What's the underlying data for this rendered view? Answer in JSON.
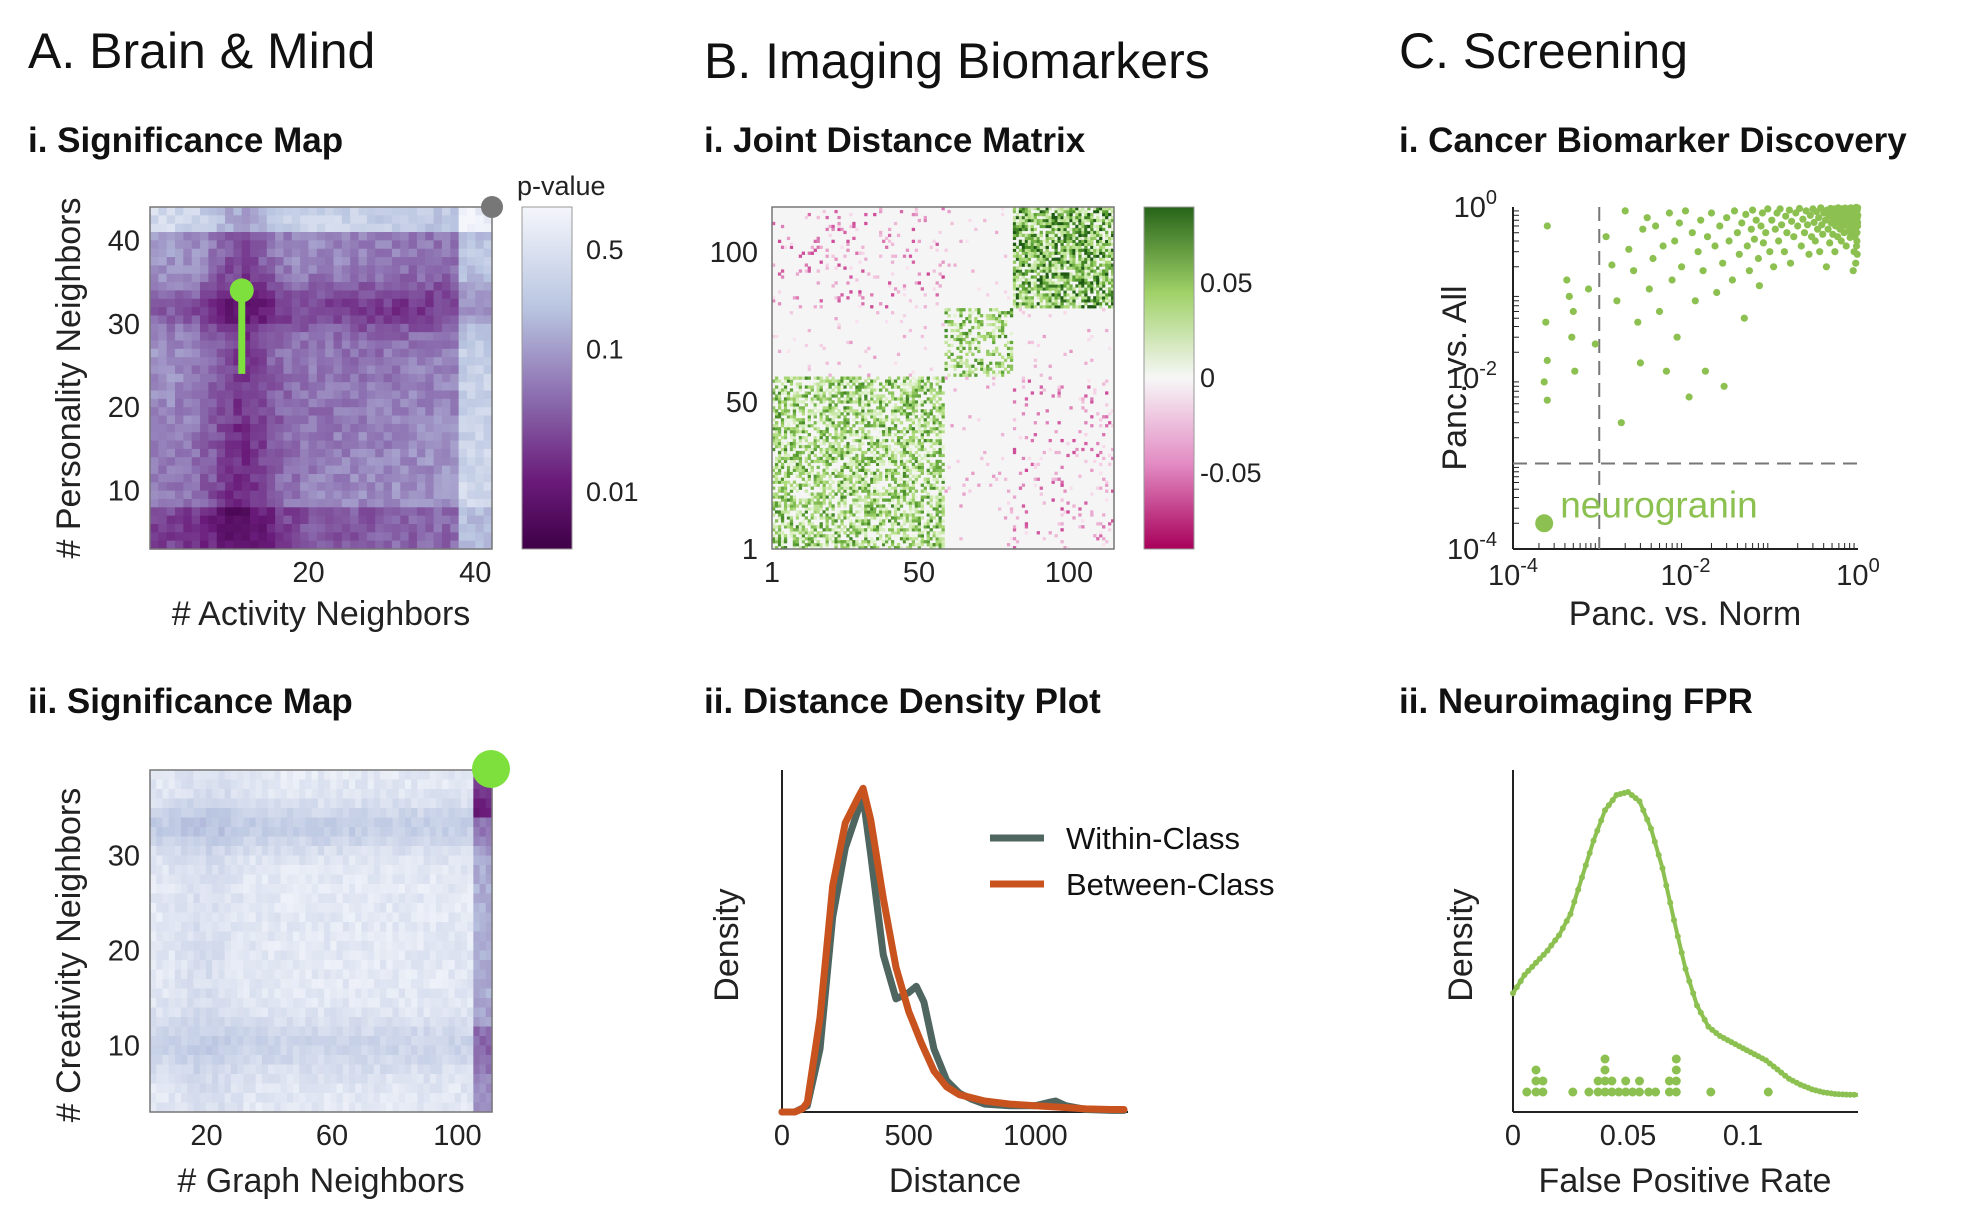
{
  "colors": {
    "purple_dark": "#54005a",
    "purple_mid": "#8c5aa6",
    "blue_light": "#d4dcec",
    "green_marker": "#7ee03c",
    "green_points": "#8cc152",
    "pink": "#c51b7d",
    "grey_marker": "#777777",
    "within_line": "#4f6660",
    "between_line": "#c8531f"
  },
  "panels": {
    "A": {
      "title": "A. Brain & Mind",
      "i": {
        "title": "i. Significance Map"
      },
      "ii": {
        "title": "ii. Significance Map"
      }
    },
    "B": {
      "title": "B. Imaging Biomarkers",
      "i": {
        "title": "i. Joint Distance Matrix"
      },
      "ii": {
        "title": "ii. Distance Density Plot"
      }
    },
    "C": {
      "title": "C. Screening",
      "i": {
        "title": "i. Cancer Biomarker Discovery"
      },
      "ii": {
        "title": "ii. Neuroimaging FPR"
      }
    }
  },
  "chart_data": [
    {
      "id": "A-i",
      "type": "heatmap",
      "xlabel": "# Activity Neighbors",
      "ylabel": "# Personality Neighbors",
      "xlim": [
        1,
        42
      ],
      "ylim": [
        3,
        44
      ],
      "xticks": [
        20,
        40
      ],
      "yticks": [
        10,
        20,
        30,
        40
      ],
      "colorbar": {
        "title": "p-value",
        "scale": "log",
        "ticks": [
          "0.5",
          "0.1",
          "0.01"
        ],
        "tick_values": [
          0.5,
          0.1,
          0.01
        ]
      },
      "optimal_point": {
        "x": 12,
        "y": 34
      },
      "stem_bottom_y": 24,
      "corner_point": {
        "x": 42,
        "y": 44
      }
    },
    {
      "id": "A-ii",
      "type": "heatmap",
      "xlabel": "# Graph Neighbors",
      "ylabel": "# Creativity Neighbors",
      "xlim": [
        2,
        111
      ],
      "ylim": [
        3,
        39
      ],
      "xticks": [
        20,
        60,
        100
      ],
      "yticks": [
        10,
        20,
        30
      ],
      "optimal_point": {
        "x": 111,
        "y": 39
      }
    },
    {
      "id": "B-i",
      "type": "heatmap",
      "xlabel": "",
      "ylabel": "",
      "xlim": [
        1,
        115
      ],
      "ylim": [
        1,
        115
      ],
      "xticks": [
        "1",
        "50",
        "100"
      ],
      "yticks": [
        "1",
        "50",
        "100"
      ],
      "blocks": [
        {
          "start": 1,
          "end": 58,
          "cls": 1
        },
        {
          "start": 59,
          "end": 81,
          "cls": 2
        },
        {
          "start": 82,
          "end": 115,
          "cls": 3
        }
      ],
      "colorbar": {
        "ticks": [
          "0.05",
          "0",
          "-0.05"
        ],
        "tick_values": [
          0.05,
          0,
          -0.05
        ],
        "range": [
          -0.09,
          0.09
        ]
      }
    },
    {
      "id": "B-ii",
      "type": "line",
      "xlabel": "Distance",
      "ylabel": "Density",
      "xlim": [
        0,
        1350
      ],
      "xticks": [
        0,
        500,
        1000
      ],
      "series": [
        {
          "name": "Within-Class",
          "color": "#4f6660",
          "x": [
            0,
            50,
            100,
            150,
            200,
            250,
            300,
            320,
            350,
            400,
            450,
            500,
            530,
            560,
            600,
            650,
            700,
            750,
            800,
            900,
            1000,
            1050,
            1080,
            1120,
            1200,
            1300,
            1350
          ],
          "y": [
            0,
            0,
            0.02,
            0.2,
            0.62,
            0.84,
            0.96,
            1.0,
            0.82,
            0.5,
            0.36,
            0.38,
            0.4,
            0.35,
            0.2,
            0.1,
            0.06,
            0.04,
            0.025,
            0.02,
            0.02,
            0.03,
            0.035,
            0.02,
            0.008,
            0.005,
            0.005
          ]
        },
        {
          "name": "Between-Class",
          "color": "#c8531f",
          "x": [
            0,
            50,
            80,
            100,
            150,
            200,
            250,
            300,
            320,
            350,
            400,
            450,
            500,
            550,
            600,
            650,
            700,
            800,
            900,
            1000,
            1100,
            1200,
            1300,
            1350
          ],
          "y": [
            0,
            0,
            0.01,
            0.03,
            0.3,
            0.72,
            0.92,
            1.0,
            1.03,
            0.93,
            0.68,
            0.46,
            0.32,
            0.22,
            0.13,
            0.08,
            0.055,
            0.035,
            0.025,
            0.02,
            0.015,
            0.01,
            0.008,
            0.008
          ]
        }
      ],
      "legend": "top-right"
    },
    {
      "id": "C-i",
      "type": "scatter",
      "xlabel": "Panc. vs. Norm",
      "ylabel": "Panc. vs. All",
      "xscale": "log",
      "yscale": "log",
      "xlim": [
        0.0001,
        1
      ],
      "ylim": [
        0.0001,
        1
      ],
      "xticks": [
        "10^-4",
        "10^-2",
        "10^0"
      ],
      "yticks": [
        "10^-4",
        "10^-2",
        "10^0"
      ],
      "threshold_x": 0.001,
      "threshold_y": 0.001,
      "highlight": {
        "label": "neurogranin",
        "x": 0.00023,
        "y": 0.0002
      },
      "points": [
        [
          0.00025,
          0.6
        ],
        [
          0.00024,
          0.045
        ],
        [
          0.00025,
          0.016
        ],
        [
          0.00023,
          0.009
        ],
        [
          0.00025,
          0.0055
        ],
        [
          0.00042,
          0.14
        ],
        [
          0.00045,
          0.09
        ],
        [
          0.0005,
          0.06
        ],
        [
          0.00048,
          0.03
        ],
        [
          0.00052,
          0.012
        ],
        [
          0.00075,
          0.11
        ],
        [
          0.0009,
          0.025
        ],
        [
          0.0012,
          0.45
        ],
        [
          0.0014,
          0.21
        ],
        [
          0.0016,
          0.08
        ],
        [
          0.0018,
          0.003
        ],
        [
          0.002,
          0.9
        ],
        [
          0.0022,
          0.32
        ],
        [
          0.0025,
          0.18
        ],
        [
          0.0028,
          0.045
        ],
        [
          0.003,
          0.015
        ],
        [
          0.0032,
          0.55
        ],
        [
          0.0036,
          0.75
        ],
        [
          0.0038,
          0.11
        ],
        [
          0.0042,
          0.25
        ],
        [
          0.0045,
          0.6
        ],
        [
          0.005,
          0.06
        ],
        [
          0.0055,
          0.35
        ],
        [
          0.006,
          0.012
        ],
        [
          0.0065,
          0.85
        ],
        [
          0.007,
          0.14
        ],
        [
          0.0075,
          0.4
        ],
        [
          0.008,
          0.03
        ],
        [
          0.0085,
          0.65
        ],
        [
          0.009,
          0.2
        ],
        [
          0.01,
          0.9
        ],
        [
          0.011,
          0.006
        ],
        [
          0.012,
          0.5
        ],
        [
          0.013,
          0.08
        ],
        [
          0.014,
          0.3
        ],
        [
          0.015,
          0.7
        ],
        [
          0.016,
          0.18
        ],
        [
          0.017,
          0.012
        ],
        [
          0.018,
          0.45
        ],
        [
          0.02,
          0.85
        ],
        [
          0.022,
          0.35
        ],
        [
          0.023,
          0.1
        ],
        [
          0.025,
          0.6
        ],
        [
          0.027,
          0.22
        ],
        [
          0.028,
          0.008
        ],
        [
          0.03,
          0.75
        ],
        [
          0.032,
          0.4
        ],
        [
          0.035,
          0.14
        ],
        [
          0.037,
          0.9
        ],
        [
          0.04,
          0.5
        ],
        [
          0.042,
          0.28
        ],
        [
          0.045,
          0.65
        ],
        [
          0.048,
          0.05
        ],
        [
          0.05,
          0.82
        ],
        [
          0.052,
          0.35
        ],
        [
          0.055,
          0.18
        ],
        [
          0.058,
          0.55
        ],
        [
          0.06,
          0.92
        ],
        [
          0.063,
          0.42
        ],
        [
          0.066,
          0.7
        ],
        [
          0.07,
          0.25
        ],
        [
          0.072,
          0.12
        ],
        [
          0.075,
          0.6
        ],
        [
          0.078,
          0.85
        ],
        [
          0.08,
          0.38
        ],
        [
          0.085,
          0.5
        ],
        [
          0.09,
          0.95
        ],
        [
          0.095,
          0.3
        ],
        [
          0.1,
          0.7
        ],
        [
          0.105,
          0.2
        ],
        [
          0.11,
          0.55
        ],
        [
          0.115,
          0.85
        ],
        [
          0.12,
          0.4
        ],
        [
          0.125,
          0.95
        ],
        [
          0.13,
          0.62
        ],
        [
          0.14,
          0.3
        ],
        [
          0.145,
          0.78
        ],
        [
          0.15,
          0.5
        ],
        [
          0.16,
          0.92
        ],
        [
          0.165,
          0.22
        ],
        [
          0.17,
          0.68
        ],
        [
          0.18,
          0.45
        ],
        [
          0.19,
          0.85
        ],
        [
          0.2,
          0.6
        ],
        [
          0.21,
          0.96
        ],
        [
          0.22,
          0.35
        ],
        [
          0.23,
          0.72
        ],
        [
          0.24,
          0.5
        ],
        [
          0.25,
          0.9
        ],
        [
          0.26,
          0.62
        ],
        [
          0.27,
          0.28
        ],
        [
          0.28,
          0.8
        ],
        [
          0.29,
          0.45
        ],
        [
          0.3,
          0.95
        ],
        [
          0.31,
          0.66
        ],
        [
          0.32,
          0.4
        ],
        [
          0.33,
          0.88
        ],
        [
          0.34,
          0.55
        ],
        [
          0.35,
          0.75
        ],
        [
          0.36,
          0.3
        ],
        [
          0.37,
          0.98
        ],
        [
          0.38,
          0.62
        ],
        [
          0.39,
          0.48
        ],
        [
          0.4,
          0.85
        ],
        [
          0.42,
          0.7
        ],
        [
          0.43,
          0.2
        ],
        [
          0.44,
          0.92
        ],
        [
          0.45,
          0.55
        ],
        [
          0.46,
          0.78
        ],
        [
          0.47,
          0.38
        ],
        [
          0.48,
          0.96
        ],
        [
          0.49,
          0.65
        ],
        [
          0.5,
          0.85
        ],
        [
          0.51,
          0.48
        ],
        [
          0.52,
          0.72
        ],
        [
          0.53,
          0.95
        ],
        [
          0.54,
          0.3
        ],
        [
          0.55,
          0.6
        ],
        [
          0.56,
          0.88
        ],
        [
          0.57,
          0.75
        ],
        [
          0.58,
          0.45
        ],
        [
          0.59,
          0.98
        ],
        [
          0.6,
          0.66
        ],
        [
          0.61,
          0.82
        ],
        [
          0.62,
          0.55
        ],
        [
          0.63,
          0.92
        ],
        [
          0.64,
          0.4
        ],
        [
          0.65,
          0.72
        ],
        [
          0.66,
          0.95
        ],
        [
          0.67,
          0.6
        ],
        [
          0.68,
          0.85
        ],
        [
          0.69,
          0.5
        ],
        [
          0.7,
          0.78
        ],
        [
          0.71,
          0.97
        ],
        [
          0.72,
          0.68
        ],
        [
          0.73,
          0.35
        ],
        [
          0.74,
          0.9
        ],
        [
          0.75,
          0.62
        ],
        [
          0.76,
          0.8
        ],
        [
          0.77,
          0.52
        ],
        [
          0.78,
          0.95
        ],
        [
          0.79,
          0.72
        ],
        [
          0.8,
          0.86
        ],
        [
          0.81,
          0.44
        ],
        [
          0.82,
          0.66
        ],
        [
          0.83,
          0.98
        ],
        [
          0.84,
          0.58
        ],
        [
          0.85,
          0.82
        ],
        [
          0.86,
          0.9
        ],
        [
          0.87,
          0.7
        ],
        [
          0.88,
          0.48
        ],
        [
          0.89,
          0.95
        ],
        [
          0.9,
          0.76
        ],
        [
          0.91,
          0.62
        ],
        [
          0.92,
          0.88
        ],
        [
          0.93,
          0.55
        ],
        [
          0.94,
          0.97
        ],
        [
          0.95,
          0.72
        ],
        [
          0.96,
          0.84
        ],
        [
          0.97,
          0.4
        ],
        [
          0.98,
          0.92
        ],
        [
          0.99,
          0.66
        ],
        [
          0.995,
          0.8
        ],
        [
          0.98,
          0.28
        ],
        [
          0.96,
          0.35
        ],
        [
          0.94,
          0.22
        ],
        [
          0.9,
          0.3
        ],
        [
          0.88,
          0.18
        ],
        [
          0.92,
          0.45
        ],
        [
          0.97,
          0.5
        ],
        [
          0.99,
          0.98
        ],
        [
          0.99,
          0.6
        ],
        [
          0.98,
          0.75
        ],
        [
          0.97,
          0.95
        ],
        [
          0.95,
          0.99
        ]
      ]
    },
    {
      "id": "C-ii",
      "type": "line",
      "xlabel": "False Positive Rate",
      "ylabel": "Density",
      "xlim": [
        0,
        0.15
      ],
      "xticks": [
        0,
        0.05,
        0.1
      ],
      "tick_labels": [
        "0",
        "0.05",
        "0.1"
      ],
      "series": [
        {
          "name": "density",
          "x": [
            0,
            0.005,
            0.01,
            0.015,
            0.02,
            0.025,
            0.03,
            0.035,
            0.04,
            0.045,
            0.05,
            0.055,
            0.06,
            0.065,
            0.07,
            0.075,
            0.08,
            0.085,
            0.09,
            0.095,
            0.1,
            0.105,
            0.11,
            0.115,
            0.12,
            0.125,
            0.13,
            0.135,
            0.14,
            0.145,
            0.15
          ],
          "y": [
            0.34,
            0.4,
            0.44,
            0.48,
            0.53,
            0.6,
            0.72,
            0.84,
            0.94,
            0.99,
            1.0,
            0.97,
            0.88,
            0.75,
            0.58,
            0.42,
            0.3,
            0.23,
            0.2,
            0.18,
            0.16,
            0.14,
            0.12,
            0.09,
            0.06,
            0.04,
            0.025,
            0.015,
            0.01,
            0.008,
            0.007
          ]
        }
      ],
      "rug": [
        {
          "x": 0.006,
          "n": 1
        },
        {
          "x": 0.01,
          "n": 3
        },
        {
          "x": 0.013,
          "n": 2
        },
        {
          "x": 0.026,
          "n": 1
        },
        {
          "x": 0.033,
          "n": 1
        },
        {
          "x": 0.037,
          "n": 2
        },
        {
          "x": 0.04,
          "n": 4
        },
        {
          "x": 0.043,
          "n": 2
        },
        {
          "x": 0.046,
          "n": 1
        },
        {
          "x": 0.049,
          "n": 2
        },
        {
          "x": 0.052,
          "n": 1
        },
        {
          "x": 0.055,
          "n": 2
        },
        {
          "x": 0.059,
          "n": 1
        },
        {
          "x": 0.062,
          "n": 1
        },
        {
          "x": 0.068,
          "n": 2
        },
        {
          "x": 0.071,
          "n": 4
        },
        {
          "x": 0.086,
          "n": 1
        },
        {
          "x": 0.111,
          "n": 1
        }
      ]
    }
  ]
}
